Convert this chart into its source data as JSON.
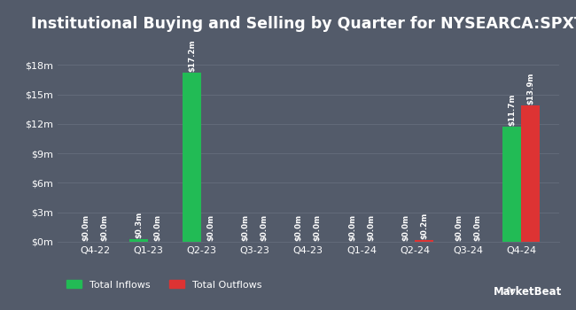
{
  "title": "Institutional Buying and Selling by Quarter for NYSEARCA:SPXT",
  "quarters": [
    "Q4-22",
    "Q1-23",
    "Q2-23",
    "Q3-23",
    "Q4-23",
    "Q1-24",
    "Q2-24",
    "Q3-24",
    "Q4-24"
  ],
  "inflows": [
    0.0,
    0.3,
    17.2,
    0.0,
    0.0,
    0.0,
    0.0,
    0.0,
    11.7
  ],
  "outflows": [
    0.0,
    0.0,
    0.0,
    0.0,
    0.0,
    0.0,
    0.2,
    0.0,
    13.9
  ],
  "inflow_labels": [
    "$0.0m",
    "$0.3m",
    "$17.2m",
    "$0.0m",
    "$0.0m",
    "$0.0m",
    "$0.0m",
    "$0.0m",
    "$11.7m"
  ],
  "outflow_labels": [
    "$0.0m",
    "$0.0m",
    "$0.0m",
    "$0.0m",
    "$0.0m",
    "$0.0m",
    "$0.2m",
    "$0.0m",
    "$13.9m"
  ],
  "inflow_color": "#22bb55",
  "outflow_color": "#dd3333",
  "background_color": "#535b6a",
  "text_color": "#ffffff",
  "grid_color": "#636b7a",
  "yticks": [
    0,
    3,
    6,
    9,
    12,
    15,
    18
  ],
  "ytick_labels": [
    "$0m",
    "$3m",
    "$6m",
    "$9m",
    "$12m",
    "$15m",
    "$18m"
  ],
  "ylim": [
    0,
    20.5
  ],
  "bar_width": 0.35,
  "legend_inflow": "Total Inflows",
  "legend_outflow": "Total Outflows",
  "title_fontsize": 12.5,
  "label_fontsize": 6.2,
  "tick_fontsize": 8,
  "legend_fontsize": 8
}
